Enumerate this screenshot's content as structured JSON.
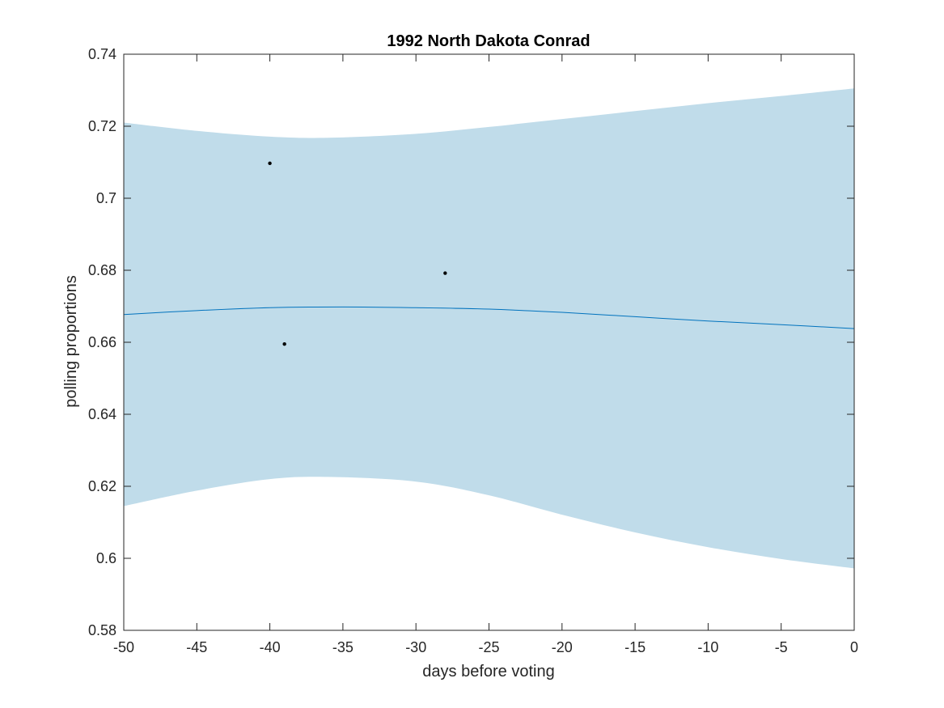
{
  "chart_data": {
    "type": "line",
    "title": "1992 North Dakota Conrad",
    "xlabel": "days before voting",
    "ylabel": "polling proportions",
    "xlim": [
      -50,
      0
    ],
    "ylim": [
      0.58,
      0.74
    ],
    "xticks": [
      -50,
      -45,
      -40,
      -35,
      -30,
      -25,
      -20,
      -15,
      -10,
      -5,
      0
    ],
    "xtick_labels": [
      "-50",
      "-45",
      "-40",
      "-35",
      "-30",
      "-25",
      "-20",
      "-15",
      "-10",
      "-5",
      "0"
    ],
    "yticks": [
      0.58,
      0.6,
      0.62,
      0.64,
      0.66,
      0.68,
      0.7,
      0.72,
      0.74
    ],
    "ytick_labels": [
      "0.58",
      "0.6",
      "0.62",
      "0.64",
      "0.66",
      "0.68",
      "0.7",
      "0.72",
      "0.74"
    ],
    "grid": false,
    "series": [
      {
        "kind": "band",
        "x": [
          -50,
          -45,
          -40,
          -36,
          -30,
          -25,
          -20,
          -15,
          -10,
          -5,
          0
        ],
        "upper": [
          0.721,
          0.7187,
          0.7171,
          0.7168,
          0.7179,
          0.7198,
          0.722,
          0.7242,
          0.7264,
          0.7284,
          0.7305
        ],
        "lower": [
          0.6145,
          0.6188,
          0.622,
          0.6226,
          0.6213,
          0.6175,
          0.6121,
          0.6072,
          0.6031,
          0.5998,
          0.5972
        ],
        "color": "#c0dcea"
      },
      {
        "kind": "line",
        "x": [
          -50,
          -45,
          -40,
          -35,
          -30,
          -25,
          -20,
          -15,
          -10,
          -5,
          0
        ],
        "y": [
          0.6677,
          0.6688,
          0.6696,
          0.6698,
          0.6696,
          0.6692,
          0.6683,
          0.6671,
          0.6659,
          0.6649,
          0.6638
        ],
        "color": "#0072bd"
      },
      {
        "kind": "scatter",
        "x": [
          -40,
          -39,
          -28
        ],
        "y": [
          0.7097,
          0.6595,
          0.6792
        ],
        "color": "#000000"
      }
    ]
  }
}
